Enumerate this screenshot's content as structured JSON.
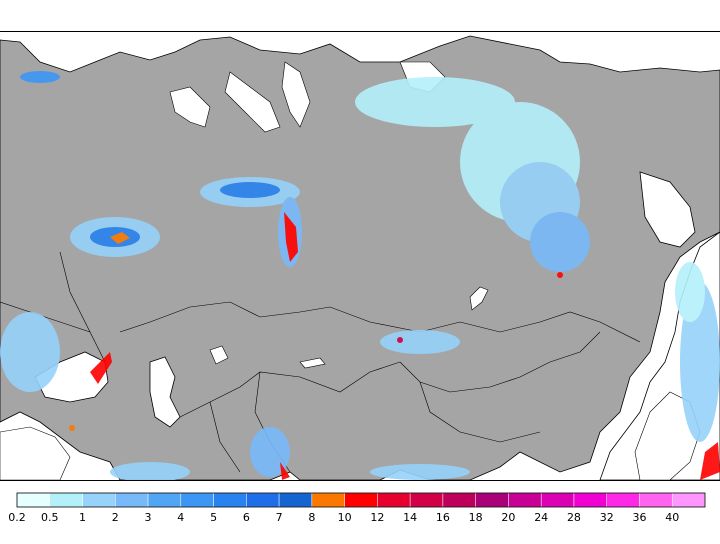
{
  "legend": {
    "colors": [
      "#e6ffff",
      "#b4f0fa",
      "#96d2fa",
      "#78b9fa",
      "#50a5f5",
      "#3c96f5",
      "#2882f0",
      "#1e6eeb",
      "#1464d2",
      "#fa7800",
      "#ff0000",
      "#e6002d",
      "#d20046",
      "#be005a",
      "#aa0078",
      "#c80096",
      "#dc00b4",
      "#f000d2",
      "#ff28e6",
      "#ff64f0",
      "#ff96ff"
    ],
    "labels": [
      "0.2",
      "0.5",
      "1",
      "2",
      "3",
      "4",
      "5",
      "6",
      "7",
      "8",
      "10",
      "12",
      "14",
      "16",
      "18",
      "20",
      "24",
      "28",
      "32",
      "36",
      "40"
    ]
  },
  "map": {
    "land_color": "#a5a5a5",
    "water_color": "#ffffff",
    "border_color": "#000000"
  }
}
